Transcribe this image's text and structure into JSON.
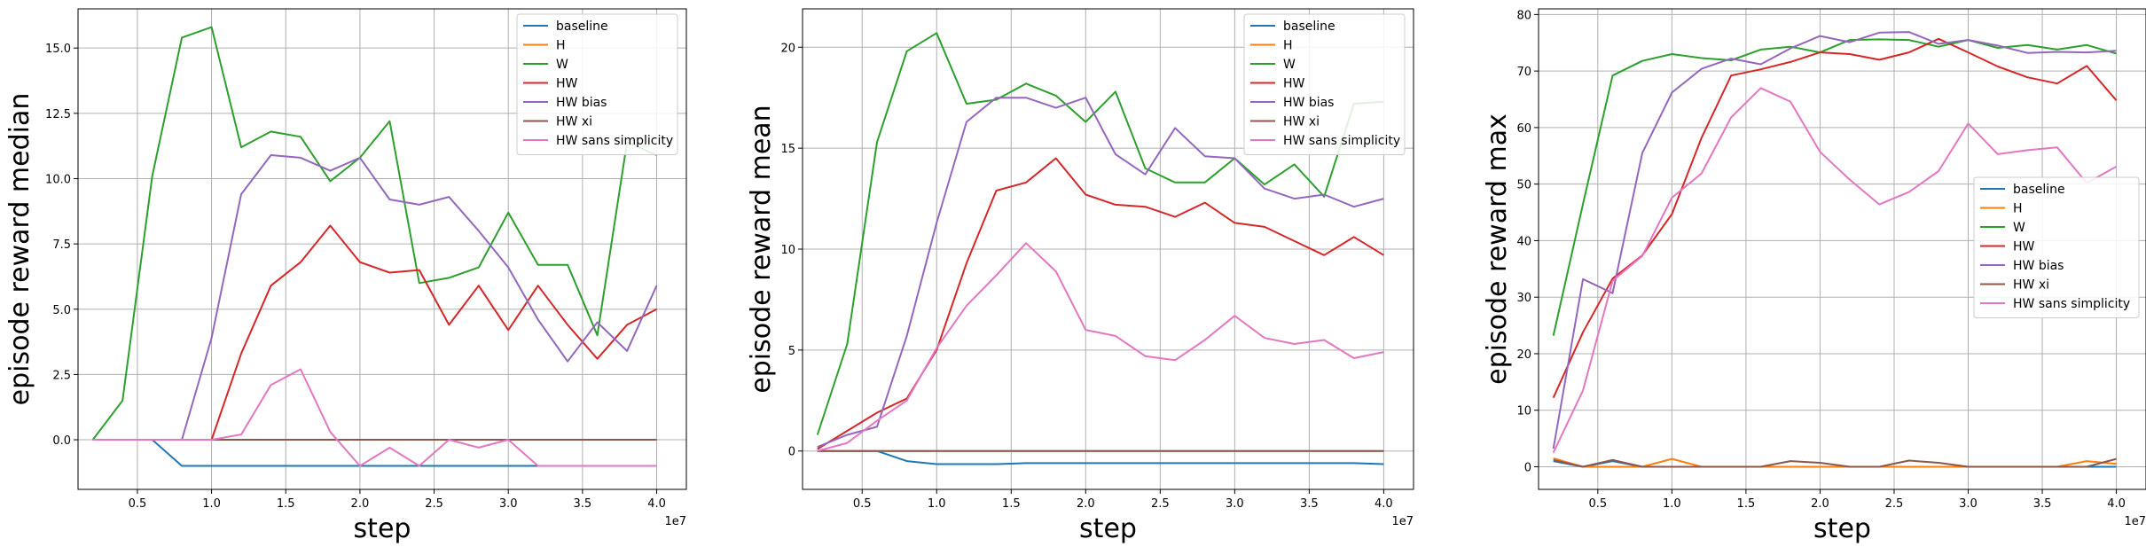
{
  "colors": {
    "baseline": "#1f77b4",
    "H": "#ff7f0e",
    "W": "#2ca02c",
    "HW": "#d62728",
    "HW bias": "#9467bd",
    "HW xi": "#8c564b",
    "HW sans simplicity": "#e377c2",
    "grid": "#b0b0b0"
  },
  "chart_data": [
    {
      "type": "line",
      "xlabel": "step",
      "ylabel": "episode reward median",
      "x_offset_label": "1e7",
      "xlim": [
        0.1,
        4.2
      ],
      "ylim": [
        -1.9,
        16.5
      ],
      "xticks": [
        0.5,
        1.0,
        1.5,
        2.0,
        2.5,
        3.0,
        3.5,
        4.0
      ],
      "xtick_labels": [
        "0.5",
        "1.0",
        "1.5",
        "2.0",
        "2.5",
        "3.0",
        "3.5",
        "4.0"
      ],
      "yticks": [
        0.0,
        2.5,
        5.0,
        7.5,
        10.0,
        12.5,
        15.0
      ],
      "ytick_labels": [
        "0.0",
        "2.5",
        "5.0",
        "7.5",
        "10.0",
        "12.5",
        "15.0"
      ],
      "grid": true,
      "legend_position": "top-right",
      "x": [
        0.2,
        0.4,
        0.6,
        0.8,
        1.0,
        1.2,
        1.4,
        1.6,
        1.8,
        2.0,
        2.2,
        2.4,
        2.6,
        2.8,
        3.0,
        3.2,
        3.4,
        3.6,
        3.8,
        4.0
      ],
      "series": [
        {
          "name": "baseline",
          "values": [
            0,
            0,
            0,
            -1,
            -1,
            -1,
            -1,
            -1,
            -1,
            -1,
            -1,
            -1,
            -1,
            -1,
            -1,
            -1,
            -1,
            -1,
            -1,
            -1
          ]
        },
        {
          "name": "H",
          "values": [
            0,
            0,
            0,
            0,
            0,
            0,
            0,
            0,
            0,
            0,
            0,
            0,
            0,
            0,
            0,
            0,
            0,
            0,
            0,
            0
          ]
        },
        {
          "name": "W",
          "values": [
            0,
            1.5,
            10.1,
            15.4,
            15.8,
            11.2,
            11.8,
            11.6,
            9.9,
            10.8,
            12.2,
            6.0,
            6.2,
            6.6,
            8.7,
            6.7,
            6.7,
            4.0,
            11.4,
            10.9
          ]
        },
        {
          "name": "HW",
          "values": [
            0,
            0,
            0,
            0,
            0,
            3.3,
            5.9,
            6.8,
            8.2,
            6.8,
            6.4,
            6.5,
            4.4,
            5.9,
            4.2,
            5.9,
            4.4,
            3.1,
            4.4,
            5.0
          ]
        },
        {
          "name": "HW bias",
          "values": [
            0,
            0,
            0,
            0,
            3.9,
            9.4,
            10.9,
            10.8,
            10.3,
            10.8,
            9.2,
            9.0,
            9.3,
            8.0,
            6.6,
            4.6,
            3.0,
            4.5,
            3.4,
            5.9
          ]
        },
        {
          "name": "HW xi",
          "values": [
            0,
            0,
            0,
            0,
            0,
            0,
            0,
            0,
            0,
            0,
            0,
            0,
            0,
            0,
            0,
            0,
            0,
            0,
            0,
            0
          ]
        },
        {
          "name": "HW sans simplicity",
          "values": [
            0,
            0,
            0,
            0,
            0,
            0.2,
            2.1,
            2.7,
            0.3,
            -1.0,
            -0.3,
            -1.0,
            0.0,
            -0.3,
            0.0,
            -1,
            -1,
            -1,
            -1,
            -1
          ]
        }
      ]
    },
    {
      "type": "line",
      "xlabel": "step",
      "ylabel": "episode reward mean",
      "x_offset_label": "1e7",
      "xlim": [
        0.1,
        4.2
      ],
      "ylim": [
        -1.9,
        21.9
      ],
      "xticks": [
        0.5,
        1.0,
        1.5,
        2.0,
        2.5,
        3.0,
        3.5,
        4.0
      ],
      "xtick_labels": [
        "0.5",
        "1.0",
        "1.5",
        "2.0",
        "2.5",
        "3.0",
        "3.5",
        "4.0"
      ],
      "yticks": [
        0,
        5,
        10,
        15,
        20
      ],
      "ytick_labels": [
        "0",
        "5",
        "10",
        "15",
        "20"
      ],
      "grid": true,
      "legend_position": "top-right",
      "x": [
        0.2,
        0.4,
        0.6,
        0.8,
        1.0,
        1.2,
        1.4,
        1.6,
        1.8,
        2.0,
        2.2,
        2.4,
        2.6,
        2.8,
        3.0,
        3.2,
        3.4,
        3.6,
        3.8,
        4.0
      ],
      "series": [
        {
          "name": "baseline",
          "values": [
            0,
            0,
            0,
            -0.5,
            -0.65,
            -0.65,
            -0.65,
            -0.6,
            -0.6,
            -0.6,
            -0.6,
            -0.6,
            -0.6,
            -0.6,
            -0.6,
            -0.6,
            -0.6,
            -0.6,
            -0.6,
            -0.65
          ]
        },
        {
          "name": "H",
          "values": [
            0,
            0,
            0,
            0,
            0,
            0,
            0,
            0,
            0,
            0,
            0,
            0,
            0,
            0,
            0,
            0,
            0,
            0,
            0,
            0
          ]
        },
        {
          "name": "W",
          "values": [
            0.8,
            5.3,
            15.3,
            19.8,
            20.7,
            17.2,
            17.4,
            18.2,
            17.6,
            16.3,
            17.8,
            14.0,
            13.3,
            13.3,
            14.5,
            13.2,
            14.2,
            12.6,
            17.2,
            17.3
          ]
        },
        {
          "name": "HW",
          "values": [
            0.1,
            1.0,
            1.9,
            2.6,
            5.0,
            9.3,
            12.9,
            13.3,
            14.5,
            12.7,
            12.2,
            12.1,
            11.6,
            12.3,
            11.3,
            11.1,
            10.4,
            9.7,
            10.6,
            9.7
          ]
        },
        {
          "name": "HW bias",
          "values": [
            0.2,
            0.8,
            1.2,
            5.7,
            11.3,
            16.3,
            17.5,
            17.5,
            17.0,
            17.5,
            14.7,
            13.7,
            16.0,
            14.6,
            14.5,
            13.0,
            12.5,
            12.7,
            12.1,
            12.5
          ]
        },
        {
          "name": "HW xi",
          "values": [
            0,
            0,
            0,
            0,
            0,
            0,
            0,
            0,
            0,
            0,
            0,
            0,
            0,
            0,
            0,
            0,
            0,
            0,
            0,
            0
          ]
        },
        {
          "name": "HW sans simplicity",
          "values": [
            0,
            0.4,
            1.5,
            2.5,
            5.1,
            7.2,
            8.7,
            10.3,
            8.9,
            6.0,
            5.7,
            4.7,
            4.5,
            5.5,
            6.7,
            5.6,
            5.3,
            5.5,
            4.6,
            4.9
          ]
        }
      ]
    },
    {
      "type": "line",
      "xlabel": "step",
      "ylabel": "episode reward max",
      "x_offset_label": "1e7",
      "xlim": [
        0.1,
        4.2
      ],
      "ylim": [
        -4,
        81
      ],
      "xticks": [
        0.5,
        1.0,
        1.5,
        2.0,
        2.5,
        3.0,
        3.5,
        4.0
      ],
      "xtick_labels": [
        "0.5",
        "1.0",
        "1.5",
        "2.0",
        "2.5",
        "3.0",
        "3.5",
        "4.0"
      ],
      "yticks": [
        0,
        10,
        20,
        30,
        40,
        50,
        60,
        70,
        80
      ],
      "ytick_labels": [
        "0",
        "10",
        "20",
        "30",
        "40",
        "50",
        "60",
        "70",
        "80"
      ],
      "grid": true,
      "legend_position": "center-right",
      "x": [
        0.2,
        0.4,
        0.6,
        0.8,
        1.0,
        1.2,
        1.4,
        1.6,
        1.8,
        2.0,
        2.2,
        2.4,
        2.6,
        2.8,
        3.0,
        3.2,
        3.4,
        3.6,
        3.8,
        4.0
      ],
      "series": [
        {
          "name": "baseline",
          "values": [
            1.0,
            0,
            1.0,
            0,
            0,
            0,
            0,
            0,
            0,
            0,
            0,
            0,
            0,
            0,
            0,
            0,
            0,
            0,
            0,
            0
          ]
        },
        {
          "name": "H",
          "values": [
            1.5,
            0,
            0,
            0,
            1.4,
            0,
            0,
            0,
            0,
            0,
            0,
            0,
            0,
            0,
            0,
            0,
            0,
            0,
            1.0,
            0.5
          ]
        },
        {
          "name": "W",
          "values": [
            23.2,
            46.5,
            69.2,
            71.8,
            73.0,
            72.3,
            71.9,
            73.8,
            74.3,
            73.3,
            75.5,
            75.6,
            75.5,
            74.3,
            75.5,
            74.1,
            74.6,
            73.8,
            74.6,
            73.1
          ]
        },
        {
          "name": "HW",
          "values": [
            12.2,
            23.8,
            33.3,
            37.4,
            44.7,
            58.2,
            69.2,
            70.3,
            71.6,
            73.3,
            73.0,
            72.0,
            73.3,
            75.7,
            73.3,
            70.8,
            68.9,
            67.8,
            70.9,
            64.8
          ]
        },
        {
          "name": "HW bias",
          "values": [
            3.2,
            33.2,
            30.7,
            55.5,
            66.2,
            70.4,
            72.2,
            71.2,
            74.0,
            76.2,
            75.1,
            76.8,
            76.9,
            74.8,
            75.5,
            74.5,
            73.2,
            73.4,
            73.3,
            73.6
          ]
        },
        {
          "name": "HW xi",
          "values": [
            1.2,
            0,
            1.2,
            0,
            0,
            0,
            0,
            0,
            1.0,
            0.7,
            0,
            0,
            1.1,
            0.7,
            0,
            0,
            0,
            0,
            0,
            1.4
          ]
        },
        {
          "name": "HW sans simplicity",
          "values": [
            2.5,
            13.5,
            32.9,
            37.3,
            47.6,
            51.9,
            61.8,
            67.0,
            64.6,
            55.7,
            50.8,
            46.4,
            48.6,
            52.3,
            60.7,
            55.3,
            56.0,
            56.5,
            50.2,
            53.1
          ]
        }
      ]
    }
  ]
}
